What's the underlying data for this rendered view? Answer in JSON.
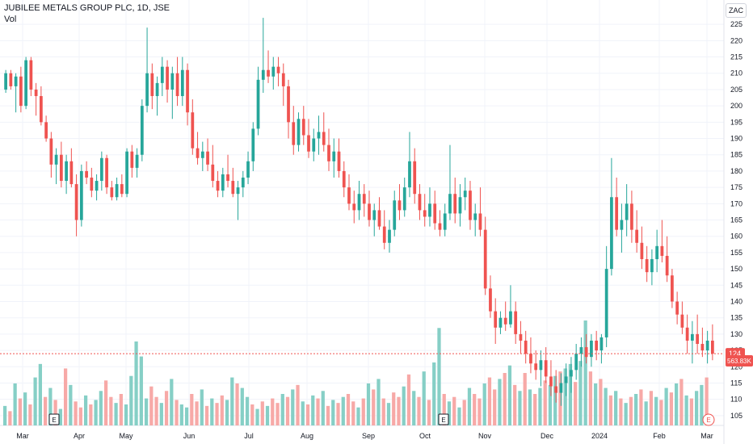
{
  "header": {
    "title": "JUBILEE METALS GROUP PLC, 1D, JSE",
    "subtitle": "Vol"
  },
  "currency_badge": "ZAC",
  "colors": {
    "up": "#26a69a",
    "down": "#ef5350",
    "up_vol": "#86cfc6",
    "down_vol": "#f7a9a7",
    "grid": "#f0f3fa",
    "price_line": "#ef5350"
  },
  "chart_data": {
    "type": "candlestick",
    "title": "JUBILEE METALS GROUP PLC, 1D, JSE",
    "ylim": [
      102,
      229
    ],
    "y_ticks": [
      105,
      110,
      115,
      120,
      125,
      130,
      135,
      140,
      145,
      150,
      155,
      160,
      165,
      170,
      175,
      180,
      185,
      190,
      195,
      200,
      205,
      210,
      215,
      220,
      225
    ],
    "x_ticks": [
      "Mar",
      "Apr",
      "May",
      "Jun",
      "Jul",
      "Aug",
      "Sep",
      "Oct",
      "Nov",
      "Dec",
      "2024",
      "Feb",
      "Mar"
    ],
    "last_price_label": "124",
    "last_price": 124,
    "volume_label": "563.83K",
    "earnings_markers": [
      "E",
      "E",
      "E"
    ],
    "grid": true,
    "candles": [
      [
        205,
        211,
        204,
        210
      ],
      [
        210,
        211,
        205,
        206
      ],
      [
        206,
        210,
        198,
        209
      ],
      [
        209,
        212,
        198,
        200
      ],
      [
        200,
        215,
        199,
        214
      ],
      [
        214,
        215,
        203,
        205
      ],
      [
        205,
        207,
        197,
        203
      ],
      [
        203,
        206,
        194,
        195
      ],
      [
        195,
        197,
        189,
        190
      ],
      [
        190,
        192,
        178,
        182
      ],
      [
        182,
        187,
        176,
        185
      ],
      [
        185,
        189,
        175,
        177
      ],
      [
        177,
        185,
        173,
        183
      ],
      [
        183,
        187,
        175,
        176
      ],
      [
        176,
        179,
        160,
        165
      ],
      [
        165,
        182,
        163,
        180
      ],
      [
        180,
        183,
        176,
        178
      ],
      [
        178,
        181,
        172,
        174
      ],
      [
        174,
        179,
        171,
        177
      ],
      [
        177,
        186,
        174,
        184
      ],
      [
        184,
        185,
        173,
        175
      ],
      [
        175,
        177,
        171,
        172
      ],
      [
        172,
        178,
        171,
        176
      ],
      [
        176,
        179,
        172,
        173
      ],
      [
        173,
        187,
        172,
        186
      ],
      [
        186,
        188,
        178,
        181
      ],
      [
        181,
        187,
        178,
        185
      ],
      [
        185,
        202,
        183,
        200
      ],
      [
        200,
        224,
        198,
        210
      ],
      [
        210,
        213,
        199,
        203
      ],
      [
        203,
        209,
        197,
        207
      ],
      [
        207,
        215,
        203,
        212
      ],
      [
        212,
        214,
        201,
        205
      ],
      [
        205,
        212,
        196,
        210
      ],
      [
        210,
        215,
        200,
        203
      ],
      [
        203,
        215,
        200,
        211
      ],
      [
        211,
        213,
        194,
        198
      ],
      [
        198,
        202,
        185,
        187
      ],
      [
        187,
        192,
        182,
        184
      ],
      [
        184,
        189,
        180,
        186
      ],
      [
        186,
        190,
        180,
        182
      ],
      [
        182,
        188,
        175,
        177
      ],
      [
        177,
        180,
        172,
        174
      ],
      [
        174,
        181,
        172,
        179
      ],
      [
        179,
        185,
        175,
        177
      ],
      [
        177,
        181,
        172,
        173
      ],
      [
        173,
        177,
        165,
        175
      ],
      [
        175,
        180,
        172,
        178
      ],
      [
        178,
        186,
        176,
        183
      ],
      [
        183,
        195,
        180,
        193
      ],
      [
        193,
        212,
        191,
        208
      ],
      [
        208,
        227,
        204,
        211
      ],
      [
        211,
        217,
        207,
        209
      ],
      [
        209,
        215,
        205,
        212
      ],
      [
        212,
        215,
        206,
        210
      ],
      [
        210,
        213,
        200,
        206
      ],
      [
        206,
        208,
        190,
        195
      ],
      [
        195,
        200,
        185,
        188
      ],
      [
        188,
        198,
        186,
        196
      ],
      [
        196,
        200,
        188,
        191
      ],
      [
        191,
        196,
        184,
        186
      ],
      [
        186,
        193,
        183,
        190
      ],
      [
        190,
        197,
        185,
        192
      ],
      [
        192,
        198,
        186,
        188
      ],
      [
        188,
        193,
        180,
        183
      ],
      [
        183,
        190,
        178,
        186
      ],
      [
        186,
        190,
        178,
        180
      ],
      [
        180,
        183,
        172,
        175
      ],
      [
        175,
        179,
        168,
        170
      ],
      [
        170,
        174,
        164,
        168
      ],
      [
        168,
        177,
        165,
        173
      ],
      [
        173,
        176,
        166,
        170
      ],
      [
        170,
        174,
        163,
        165
      ],
      [
        165,
        170,
        160,
        168
      ],
      [
        168,
        172,
        162,
        163
      ],
      [
        163,
        168,
        156,
        158
      ],
      [
        158,
        165,
        155,
        162
      ],
      [
        162,
        174,
        160,
        171
      ],
      [
        171,
        176,
        165,
        168
      ],
      [
        168,
        178,
        166,
        175
      ],
      [
        175,
        192,
        172,
        183
      ],
      [
        183,
        187,
        170,
        173
      ],
      [
        173,
        176,
        165,
        168
      ],
      [
        168,
        173,
        163,
        166
      ],
      [
        166,
        175,
        163,
        170
      ],
      [
        170,
        174,
        162,
        164
      ],
      [
        164,
        168,
        160,
        162
      ],
      [
        162,
        170,
        160,
        167
      ],
      [
        167,
        188,
        165,
        173
      ],
      [
        173,
        178,
        164,
        167
      ],
      [
        167,
        176,
        163,
        172
      ],
      [
        172,
        178,
        168,
        174
      ],
      [
        174,
        177,
        162,
        165
      ],
      [
        165,
        170,
        160,
        167
      ],
      [
        167,
        175,
        160,
        162
      ],
      [
        162,
        166,
        142,
        144
      ],
      [
        144,
        148,
        135,
        137
      ],
      [
        137,
        141,
        127,
        132
      ],
      [
        132,
        137,
        130,
        135
      ],
      [
        135,
        140,
        131,
        133
      ],
      [
        133,
        145,
        132,
        137
      ],
      [
        137,
        140,
        127,
        130
      ],
      [
        130,
        134,
        124,
        128
      ],
      [
        128,
        131,
        121,
        124
      ],
      [
        124,
        129,
        118,
        121
      ],
      [
        121,
        125,
        116,
        119
      ],
      [
        119,
        125,
        114,
        122
      ],
      [
        122,
        126,
        115,
        117
      ],
      [
        117,
        122,
        111,
        114
      ],
      [
        114,
        119,
        109,
        112
      ],
      [
        112,
        118,
        108,
        115
      ],
      [
        115,
        121,
        111,
        117
      ],
      [
        117,
        123,
        112,
        119
      ],
      [
        119,
        127,
        116,
        124
      ],
      [
        124,
        129,
        120,
        126
      ],
      [
        126,
        130,
        121,
        123
      ],
      [
        123,
        130,
        120,
        128
      ],
      [
        128,
        131,
        122,
        125
      ],
      [
        125,
        130,
        121,
        129
      ],
      [
        129,
        157,
        126,
        150
      ],
      [
        150,
        184,
        148,
        172
      ],
      [
        172,
        178,
        160,
        162
      ],
      [
        162,
        170,
        155,
        165
      ],
      [
        165,
        176,
        160,
        170
      ],
      [
        170,
        174,
        158,
        162
      ],
      [
        162,
        168,
        155,
        158
      ],
      [
        158,
        163,
        150,
        153
      ],
      [
        153,
        157,
        146,
        149
      ],
      [
        149,
        156,
        145,
        153
      ],
      [
        153,
        162,
        149,
        157
      ],
      [
        157,
        165,
        152,
        154
      ],
      [
        154,
        160,
        146,
        148
      ],
      [
        148,
        150,
        138,
        140
      ],
      [
        140,
        143,
        133,
        136
      ],
      [
        136,
        140,
        130,
        132
      ],
      [
        132,
        136,
        124,
        128
      ],
      [
        128,
        134,
        121,
        130
      ],
      [
        130,
        136,
        124,
        127
      ],
      [
        127,
        132,
        123,
        125
      ],
      [
        125,
        131,
        121,
        128
      ],
      [
        128,
        133,
        122,
        124
      ]
    ],
    "volume": [
      [
        130,
        0
      ],
      [
        95,
        1
      ],
      [
        280,
        0
      ],
      [
        180,
        1
      ],
      [
        220,
        0
      ],
      [
        140,
        1
      ],
      [
        320,
        0
      ],
      [
        410,
        0
      ],
      [
        190,
        1
      ],
      [
        250,
        0
      ],
      [
        170,
        1
      ],
      [
        110,
        0
      ],
      [
        380,
        1
      ],
      [
        270,
        0
      ],
      [
        160,
        1
      ],
      [
        120,
        1
      ],
      [
        200,
        0
      ],
      [
        140,
        1
      ],
      [
        170,
        0
      ],
      [
        230,
        0
      ],
      [
        300,
        1
      ],
      [
        190,
        1
      ],
      [
        150,
        0
      ],
      [
        210,
        1
      ],
      [
        140,
        0
      ],
      [
        330,
        0
      ],
      [
        560,
        0
      ],
      [
        460,
        0
      ],
      [
        180,
        0
      ],
      [
        260,
        1
      ],
      [
        190,
        1
      ],
      [
        150,
        0
      ],
      [
        230,
        1
      ],
      [
        310,
        0
      ],
      [
        170,
        1
      ],
      [
        140,
        0
      ],
      [
        120,
        0
      ],
      [
        210,
        1
      ],
      [
        160,
        1
      ],
      [
        240,
        0
      ],
      [
        130,
        1
      ],
      [
        180,
        0
      ],
      [
        150,
        1
      ],
      [
        200,
        1
      ],
      [
        170,
        0
      ],
      [
        320,
        0
      ],
      [
        280,
        1
      ],
      [
        250,
        0
      ],
      [
        190,
        0
      ],
      [
        140,
        1
      ],
      [
        110,
        0
      ],
      [
        160,
        1
      ],
      [
        130,
        0
      ],
      [
        180,
        1
      ],
      [
        150,
        1
      ],
      [
        210,
        0
      ],
      [
        190,
        1
      ],
      [
        240,
        0
      ],
      [
        270,
        1
      ],
      [
        160,
        0
      ],
      [
        140,
        1
      ],
      [
        200,
        0
      ],
      [
        180,
        1
      ],
      [
        230,
        0
      ],
      [
        130,
        1
      ],
      [
        170,
        0
      ],
      [
        150,
        1
      ],
      [
        190,
        0
      ],
      [
        210,
        1
      ],
      [
        160,
        1
      ],
      [
        120,
        0
      ],
      [
        180,
        1
      ],
      [
        280,
        0
      ],
      [
        240,
        1
      ],
      [
        310,
        0
      ],
      [
        180,
        1
      ],
      [
        150,
        0
      ],
      [
        220,
        1
      ],
      [
        190,
        1
      ],
      [
        260,
        0
      ],
      [
        340,
        1
      ],
      [
        230,
        0
      ],
      [
        190,
        1
      ],
      [
        360,
        0
      ],
      [
        170,
        1
      ],
      [
        420,
        0
      ],
      [
        650,
        0
      ],
      [
        210,
        1
      ],
      [
        160,
        0
      ],
      [
        190,
        1
      ],
      [
        120,
        0
      ],
      [
        170,
        1
      ],
      [
        250,
        0
      ],
      [
        210,
        1
      ],
      [
        180,
        1
      ],
      [
        280,
        0
      ],
      [
        320,
        1
      ],
      [
        240,
        1
      ],
      [
        310,
        0
      ],
      [
        350,
        1
      ],
      [
        400,
        0
      ],
      [
        270,
        1
      ],
      [
        230,
        0
      ],
      [
        350,
        1
      ],
      [
        240,
        0
      ],
      [
        210,
        1
      ],
      [
        250,
        0
      ],
      [
        300,
        1
      ],
      [
        270,
        0
      ],
      [
        330,
        0
      ],
      [
        360,
        1
      ],
      [
        380,
        0
      ],
      [
        410,
        0
      ],
      [
        290,
        1
      ],
      [
        430,
        0
      ],
      [
        700,
        0
      ],
      [
        360,
        1
      ],
      [
        280,
        0
      ],
      [
        310,
        1
      ],
      [
        250,
        0
      ],
      [
        200,
        1
      ],
      [
        230,
        0
      ],
      [
        180,
        1
      ],
      [
        150,
        0
      ],
      [
        190,
        1
      ],
      [
        210,
        0
      ],
      [
        240,
        1
      ],
      [
        160,
        0
      ],
      [
        230,
        1
      ],
      [
        190,
        0
      ],
      [
        170,
        1
      ],
      [
        250,
        0
      ],
      [
        220,
        1
      ],
      [
        280,
        0
      ],
      [
        310,
        1
      ],
      [
        200,
        0
      ],
      [
        180,
        1
      ],
      [
        230,
        0
      ],
      [
        270,
        0
      ],
      [
        320,
        1
      ]
    ]
  }
}
